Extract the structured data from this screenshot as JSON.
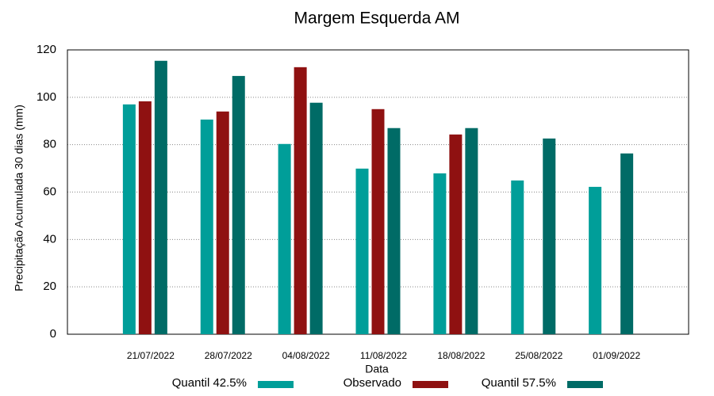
{
  "chart_data": {
    "type": "bar",
    "title": "Margem Esquerda AM",
    "x_label": "Data",
    "y_label": "Precipitação Acumulada 30 dias (mm)",
    "categories": [
      "21/07/2022",
      "28/07/2022",
      "04/08/2022",
      "11/08/2022",
      "18/08/2022",
      "25/08/2022",
      "01/09/2022"
    ],
    "series": [
      {
        "name": "Quantil 42.5%",
        "color": "#009e99",
        "values": [
          97,
          90.6,
          80.3,
          69.9,
          67.9,
          64.9,
          62.2
        ]
      },
      {
        "name": "Observado",
        "color": "#8f1111",
        "values": [
          98.3,
          94,
          112.7,
          95,
          84.3,
          null,
          null
        ]
      },
      {
        "name": "Quantil 57.5%",
        "color": "#006b66",
        "values": [
          115.4,
          109,
          97.7,
          87,
          87,
          82.6,
          76.3
        ]
      }
    ],
    "ylim": [
      0,
      120
    ],
    "yticks": [
      0,
      20,
      40,
      60,
      80,
      100,
      120
    ],
    "grid": true,
    "legend": "bottom"
  }
}
